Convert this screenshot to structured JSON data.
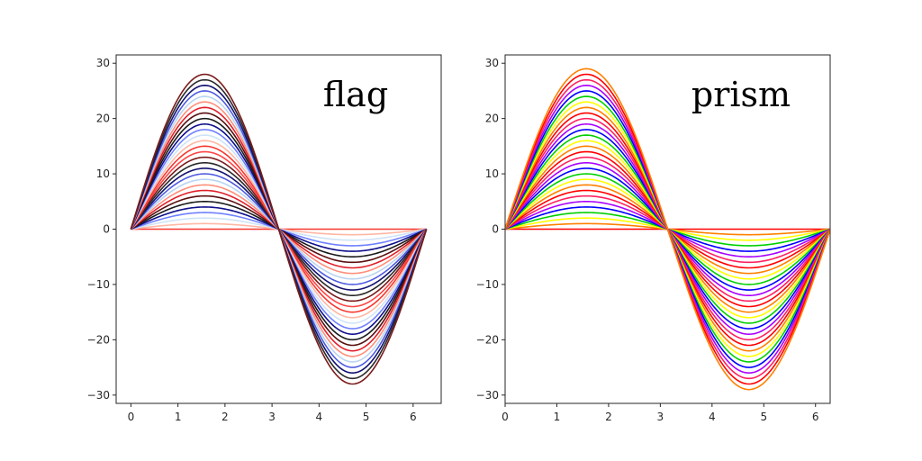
{
  "chart_data": [
    {
      "type": "line",
      "title": "flag",
      "colormap": "flag",
      "function": "k * sin(x)",
      "x_range": [
        0,
        6.2832
      ],
      "amplitudes": [
        0,
        1,
        2,
        3,
        4,
        5,
        6,
        7,
        8,
        9,
        10,
        11,
        12,
        13,
        14,
        15,
        16,
        17,
        18,
        19,
        20,
        21,
        22,
        23,
        24,
        25,
        26,
        27,
        28
      ],
      "xlim": [
        -0.314,
        6.597
      ],
      "ylim": [
        -31.5,
        31.5
      ],
      "x_ticks": [
        {
          "value": 0,
          "label": "0"
        },
        {
          "value": 1,
          "label": "1"
        },
        {
          "value": 2,
          "label": "2"
        },
        {
          "value": 3,
          "label": "3"
        },
        {
          "value": 4,
          "label": "4"
        },
        {
          "value": 5,
          "label": "5"
        },
        {
          "value": 6,
          "label": "6"
        }
      ],
      "y_ticks": [
        {
          "value": 30,
          "label": "30"
        },
        {
          "value": 20,
          "label": "20"
        },
        {
          "value": 10,
          "label": "10"
        },
        {
          "value": 0,
          "label": "0"
        },
        {
          "value": -10,
          "label": "−10"
        },
        {
          "value": -20,
          "label": "−20"
        },
        {
          "value": -30,
          "label": "−30"
        }
      ],
      "grid": false,
      "palette": [
        "#f7372f",
        "#ffb7a3",
        "#cfe3f7",
        "#6f80ff",
        "#0f0f8c",
        "#1a1a1a",
        "#5a0f0f",
        "#e0202a",
        "#ff8f7a",
        "#b9d4f2",
        "#4e5bdf",
        "#12126f",
        "#2a2a2a",
        "#7a1a1a",
        "#ff4444"
      ]
    },
    {
      "type": "line",
      "title": "prism",
      "colormap": "prism",
      "function": "k * sin(x)",
      "x_range": [
        0,
        6.2832
      ],
      "amplitudes": [
        0,
        1,
        2,
        3,
        4,
        5,
        6,
        7,
        8,
        9,
        10,
        11,
        12,
        13,
        14,
        15,
        16,
        17,
        18,
        19,
        20,
        21,
        22,
        23,
        24,
        25,
        26,
        27,
        28,
        29
      ],
      "xlim": [
        0,
        6.2832
      ],
      "ylim": [
        -31.5,
        31.5
      ],
      "x_ticks": [
        {
          "value": 0,
          "label": "0"
        },
        {
          "value": 1,
          "label": "1"
        },
        {
          "value": 2,
          "label": "2"
        },
        {
          "value": 3,
          "label": "3"
        },
        {
          "value": 4,
          "label": "4"
        },
        {
          "value": 5,
          "label": "5"
        },
        {
          "value": 6,
          "label": "6"
        }
      ],
      "y_ticks": [
        {
          "value": 30,
          "label": "30"
        },
        {
          "value": 20,
          "label": "20"
        },
        {
          "value": 10,
          "label": "10"
        },
        {
          "value": 0,
          "label": "0"
        },
        {
          "value": -10,
          "label": "−10"
        },
        {
          "value": -20,
          "label": "−20"
        },
        {
          "value": -30,
          "label": "−30"
        }
      ],
      "grid": false,
      "palette": [
        "#ff0000",
        "#ff8000",
        "#ffff00",
        "#00d000",
        "#0000ff",
        "#aa00ff",
        "#ff2060"
      ]
    }
  ]
}
